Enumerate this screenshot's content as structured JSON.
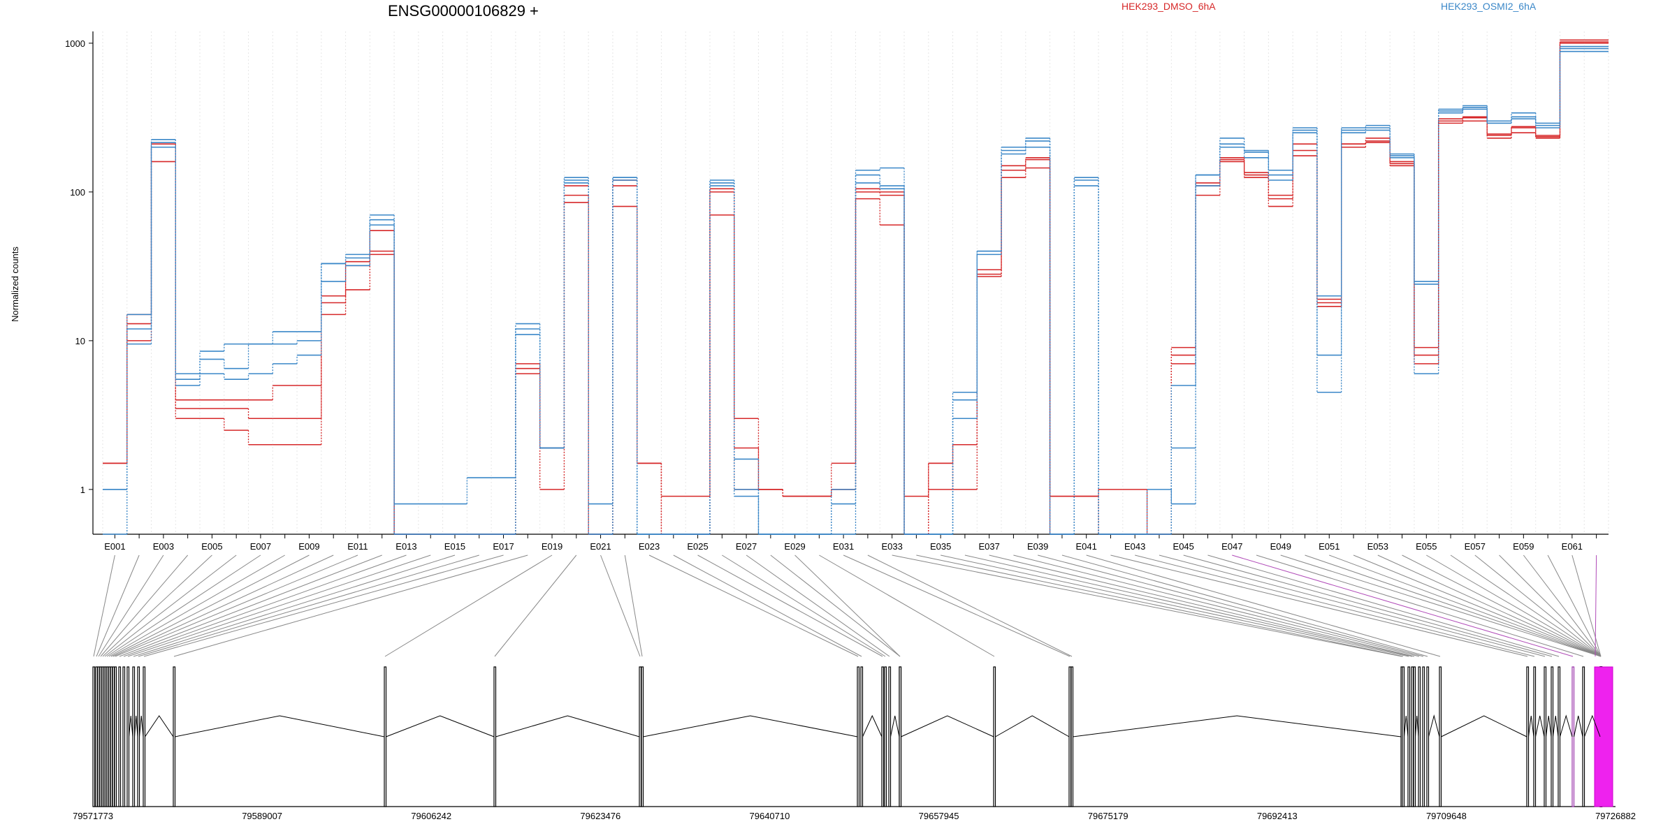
{
  "chart_data": {
    "type": "line",
    "title": "ENSG00000106829 +",
    "ylabel": "Normalized counts",
    "xlabel": "",
    "y_scale": "log",
    "ylim": [
      0.5,
      1200
    ],
    "y_ticks": [
      "1",
      "10",
      "100",
      "1000"
    ],
    "grid": "vertical per exon",
    "legend_placement": "top",
    "legend": [
      {
        "label": "HEK293_DMSO_6hA",
        "color": "#d62728"
      },
      {
        "label": "HEK293_OSMI2_6hA",
        "color": "#3a87c8"
      }
    ],
    "x": [
      "E001",
      "E002",
      "E003",
      "E004",
      "E005",
      "E006",
      "E007",
      "E008",
      "E009",
      "E010",
      "E011",
      "E012",
      "E013",
      "E014",
      "E015",
      "E016",
      "E017",
      "E018",
      "E019",
      "E020",
      "E021",
      "E022",
      "E023",
      "E024",
      "E025",
      "E026",
      "E027",
      "E028",
      "E029",
      "E030",
      "E031",
      "E032",
      "E033",
      "E034",
      "E035",
      "E036",
      "E037",
      "E038",
      "E039",
      "E040",
      "E041",
      "E042",
      "E043",
      "E044",
      "E045",
      "E046",
      "E047",
      "E048",
      "E049",
      "E050",
      "E051",
      "E052",
      "E053",
      "E054",
      "E055",
      "E056",
      "E057",
      "E058",
      "E059",
      "E060",
      "E061",
      "E062"
    ],
    "x_tick_labels": [
      "E001",
      "E003",
      "E005",
      "E007",
      "E009",
      "E011",
      "E013",
      "E015",
      "E017",
      "E019",
      "E021",
      "E023",
      "E025",
      "E027",
      "E029",
      "E031",
      "E033",
      "E035",
      "E037",
      "E039",
      "E041",
      "E043",
      "E045",
      "E047",
      "E049",
      "E051",
      "E053",
      "E055",
      "E057",
      "E059",
      "E061"
    ],
    "series": [
      {
        "group": "HEK293_DMSO_6hA",
        "values": [
          1.5,
          10,
          200,
          3.5,
          3.5,
          3.5,
          3,
          3,
          3,
          18,
          32,
          40,
          0.5,
          0.5,
          0.5,
          0.5,
          0.5,
          6.5,
          1.9,
          110,
          0.5,
          120,
          1.5,
          0.5,
          0.5,
          100,
          1.9,
          1.0,
          0.9,
          0.9,
          1.0,
          100,
          95,
          0.5,
          1.0,
          2.0,
          28,
          140,
          165,
          0.5,
          0.9,
          0.5,
          0.5,
          0.5,
          8.0,
          110,
          160,
          130,
          95,
          190,
          19,
          210,
          230,
          160,
          8.0,
          300,
          320,
          240,
          270,
          240,
          1050,
          1050
        ]
      },
      {
        "group": "HEK293_DMSO_6hA",
        "values": [
          1.5,
          13,
          160,
          3.0,
          3.0,
          2.5,
          2.0,
          2.0,
          2.0,
          15,
          22,
          38,
          0.5,
          0.5,
          0.5,
          0.5,
          0.5,
          7.0,
          1.0,
          85,
          0.5,
          80,
          1.5,
          0.5,
          0.5,
          70,
          3.0,
          1.0,
          0.9,
          0.9,
          1.5,
          90,
          60,
          0.5,
          1.5,
          1.0,
          30,
          125,
          145,
          0.9,
          0.9,
          1.0,
          1.0,
          0.5,
          9.0,
          95,
          165,
          125,
          80,
          175,
          18,
          200,
          215,
          150,
          7.0,
          290,
          300,
          230,
          250,
          230,
          1000,
          1000
        ]
      },
      {
        "group": "HEK293_DMSO_6hA",
        "values": [
          1.5,
          15,
          210,
          4.0,
          4.0,
          4.0,
          4.0,
          5.0,
          5.0,
          20,
          34,
          55,
          0.5,
          0.5,
          0.5,
          0.5,
          0.5,
          6.0,
          1.9,
          95,
          0.5,
          110,
          1.5,
          0.9,
          0.9,
          105,
          1.0,
          1.0,
          0.9,
          0.9,
          1.0,
          105,
          100,
          0.9,
          1.5,
          2.0,
          27,
          150,
          170,
          0.9,
          0.9,
          0.5,
          0.5,
          0.5,
          7.0,
          115,
          170,
          135,
          90,
          210,
          17,
          210,
          220,
          155,
          9.0,
          310,
          315,
          245,
          275,
          235,
          1020,
          1020
        ]
      },
      {
        "group": "HEK293_OSMI2_6hA",
        "values": [
          1.0,
          9.5,
          225,
          6.0,
          8.5,
          9.5,
          9.5,
          11.5,
          11.5,
          33,
          38,
          70,
          0.8,
          0.8,
          0.8,
          1.2,
          1.2,
          13,
          1.9,
          125,
          0.8,
          125,
          0.5,
          0.5,
          0.5,
          120,
          1.0,
          0.5,
          0.5,
          0.5,
          1.0,
          140,
          145,
          0.5,
          0.5,
          4.5,
          40,
          200,
          230,
          0.5,
          125,
          0.5,
          0.5,
          1.0,
          0.8,
          130,
          230,
          190,
          140,
          270,
          4.5,
          270,
          280,
          180,
          6.0,
          360,
          380,
          300,
          340,
          290,
          880,
          880
        ]
      },
      {
        "group": "HEK293_OSMI2_6hA",
        "values": [
          0.5,
          12,
          200,
          5.0,
          6.0,
          5.5,
          6.0,
          7.0,
          8.0,
          25,
          32,
          60,
          0.5,
          0.5,
          0.5,
          0.5,
          0.5,
          11,
          1.9,
          115,
          0.5,
          120,
          0.5,
          0.5,
          0.5,
          110,
          1.6,
          0.5,
          0.5,
          0.5,
          0.5,
          115,
          110,
          0.5,
          0.5,
          3.0,
          38,
          180,
          200,
          0.5,
          110,
          0.5,
          0.5,
          0.5,
          1.9,
          110,
          200,
          170,
          120,
          250,
          8.0,
          250,
          260,
          170,
          25,
          340,
          360,
          290,
          310,
          270,
          920,
          920
        ]
      },
      {
        "group": "HEK293_OSMI2_6hA",
        "values": [
          1.0,
          15,
          215,
          5.5,
          7.5,
          6.5,
          9.5,
          9.5,
          10,
          33,
          36,
          65,
          0.5,
          0.5,
          0.5,
          0.5,
          0.5,
          12,
          1.9,
          120,
          0.5,
          125,
          0.5,
          0.5,
          0.5,
          115,
          0.9,
          0.5,
          0.5,
          0.5,
          0.8,
          130,
          105,
          0.5,
          0.5,
          4.0,
          40,
          190,
          220,
          0.5,
          120,
          0.5,
          0.5,
          0.5,
          5.0,
          130,
          210,
          185,
          130,
          260,
          20,
          260,
          270,
          175,
          24,
          350,
          370,
          290,
          320,
          280,
          950,
          950
        ]
      }
    ],
    "coordinate_labels": [
      "79571773",
      "79589007",
      "79606242",
      "79623476",
      "79640710",
      "79657945",
      "79675179",
      "79692413",
      "79709648",
      "79726882"
    ]
  }
}
